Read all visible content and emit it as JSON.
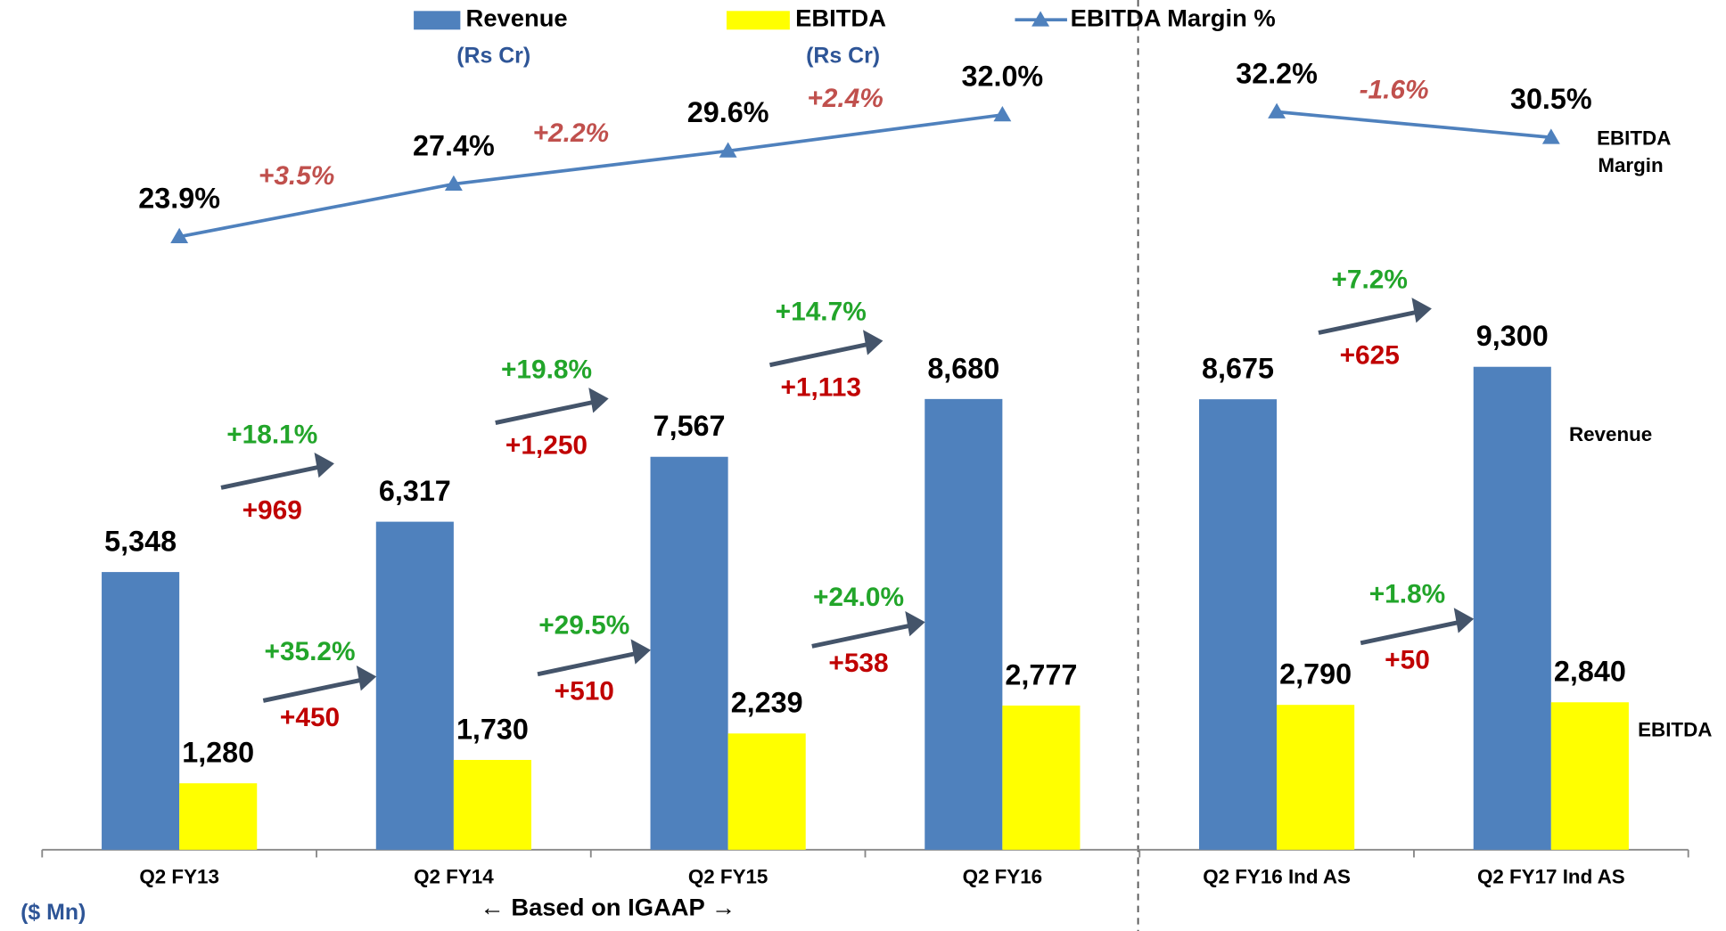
{
  "chart_data": {
    "type": "bar",
    "categories": [
      "Q2 FY13",
      "Q2 FY14",
      "Q2 FY15",
      "Q2 FY16",
      "Q2 FY16 Ind AS",
      "Q2 FY17 Ind AS"
    ],
    "series": [
      {
        "name": "Revenue",
        "unit": "(Rs Cr)",
        "color": "#4f81bd",
        "values": [
          5348,
          6317,
          7567,
          8680,
          8675,
          9300
        ],
        "value_labels": [
          "5,348",
          "6,317",
          "7,567",
          "8,680",
          "8,675",
          "9,300"
        ]
      },
      {
        "name": "EBITDA",
        "unit": "(Rs Cr)",
        "color": "#ffff00",
        "values": [
          1280,
          1730,
          2239,
          2777,
          2790,
          2840
        ],
        "value_labels": [
          "1,280",
          "1,730",
          "2,239",
          "2,777",
          "2,790",
          "2,840"
        ]
      },
      {
        "name": "EBITDA Margin %",
        "type": "line",
        "axis": "y2",
        "color": "#4f81bd",
        "values": [
          23.9,
          27.4,
          29.6,
          32.0,
          32.2,
          30.5
        ],
        "value_labels": [
          "23.9%",
          "27.4%",
          "29.6%",
          "32.0%",
          "32.2%",
          "30.5%"
        ]
      }
    ],
    "ylim": [
      0,
      10000
    ],
    "y2lim": [
      20,
      35
    ],
    "revenue_growth": [
      {
        "pct": "+18.1%",
        "abs": "+969"
      },
      {
        "pct": "+19.8%",
        "abs": "+1,250"
      },
      {
        "pct": "+14.7%",
        "abs": "+1,113"
      },
      {
        "pct": "+7.2%",
        "abs": "+625"
      }
    ],
    "ebitda_growth": [
      {
        "pct": "+35.2%",
        "abs": "+450"
      },
      {
        "pct": "+29.5%",
        "abs": "+510"
      },
      {
        "pct": "+24.0%",
        "abs": "+538"
      },
      {
        "pct": "+1.8%",
        "abs": "+50"
      }
    ],
    "margin_change": [
      "+3.5%",
      "+2.2%",
      "+2.4%",
      "-1.6%"
    ],
    "line_label": [
      "EBITDA",
      "Margin"
    ],
    "revenue_label": "Revenue",
    "ebitda_label": "EBITDA",
    "section_label": "← Based on IGAAP →",
    "unit_note": "($ Mn)"
  }
}
